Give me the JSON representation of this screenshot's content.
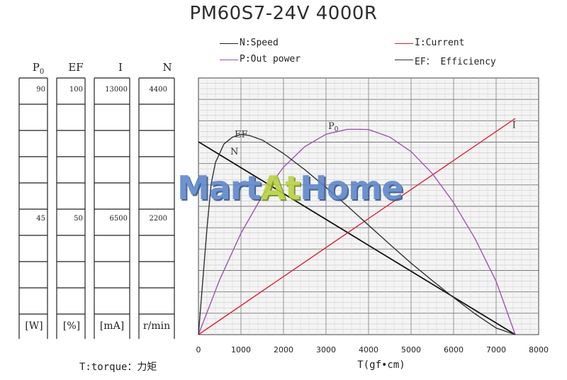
{
  "chart_data": {
    "type": "line",
    "title": "PM60S7-24V 4000R",
    "xlabel": "T(gf•cm)",
    "xlim": [
      0,
      8000
    ],
    "x_ticks": [
      "0",
      "1000",
      "2000",
      "3000",
      "4000",
      "5000",
      "6000",
      "7000",
      "8000"
    ],
    "grid": true,
    "legend": [
      {
        "label": "N:Speed",
        "color": "#222222"
      },
      {
        "label": "I:Current",
        "color": "#dd2233"
      },
      {
        "label": "P:Out power",
        "color": "#a053b0"
      },
      {
        "label": "EF： Efficiency",
        "color": "#333333"
      }
    ],
    "scales": [
      {
        "header": "P",
        "header_sub": "0",
        "unit": "[W]",
        "top": "90",
        "mid": "45"
      },
      {
        "header": "EF",
        "header_sub": "",
        "unit": "[%]",
        "top": "100",
        "mid": "50"
      },
      {
        "header": "I",
        "header_sub": "",
        "unit": "[mA]",
        "top": "13000",
        "mid": "6500"
      },
      {
        "header": "N",
        "header_sub": "",
        "unit": "r/min",
        "top": "4400",
        "mid": "2200"
      }
    ],
    "series": [
      {
        "name": "N",
        "color": "#111111",
        "x": [
          0,
          7450
        ],
        "y": [
          4000,
          0
        ]
      },
      {
        "name": "I",
        "color": "#dd2233",
        "x": [
          0,
          7450
        ],
        "y": [
          0,
          11500
        ]
      },
      {
        "name": "P",
        "color": "#a053b0",
        "x": [
          0,
          500,
          1000,
          1500,
          2000,
          2500,
          3000,
          3500,
          3725,
          4000,
          4500,
          5000,
          5500,
          6000,
          6500,
          7000,
          7450
        ],
        "y": [
          0,
          22.5,
          41.5,
          56.7,
          68.5,
          76.9,
          82.0,
          84.0,
          84.0,
          83.9,
          80.8,
          74.9,
          65.9,
          54.0,
          39.4,
          21.8,
          0
        ]
      },
      {
        "name": "EF",
        "color": "#333333",
        "x": [
          0,
          100,
          200,
          300,
          400,
          600,
          800,
          1000,
          1200,
          1500,
          2000,
          2500,
          3000,
          3500,
          4000,
          4500,
          5000,
          5500,
          6000,
          6500,
          7000,
          7450
        ],
        "y": [
          0,
          20,
          40,
          57,
          65,
          72,
          74.6,
          75.6,
          75.2,
          73.5,
          68.4,
          62.3,
          55.6,
          48.6,
          41.3,
          34.1,
          27.0,
          20.4,
          14.0,
          7.9,
          2.5,
          0
        ]
      }
    ],
    "annotations": [
      {
        "text": "I",
        "series": "I"
      },
      {
        "text": "N",
        "series": "N"
      },
      {
        "text": "EF",
        "series": "EF"
      },
      {
        "text": "P",
        "sub": "0",
        "series": "P"
      }
    ]
  },
  "torque_note": "T:torque：力矩",
  "watermark": {
    "part1": "Mart",
    "part2": "At",
    "part3": "Home"
  }
}
